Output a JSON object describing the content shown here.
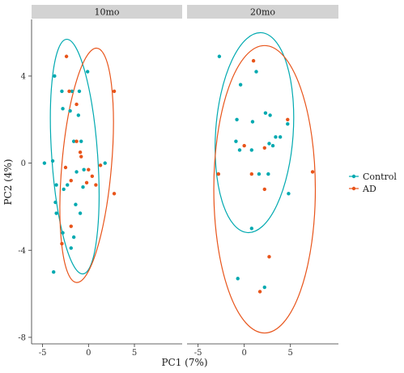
{
  "chart_data": {
    "type": "scatter",
    "xlabel": "PC1 (7%)",
    "ylabel": "PC2 (4%)",
    "xlim": [
      -6.2,
      10.2
    ],
    "ylim": [
      -8.3,
      6.6
    ],
    "xticks": [
      -5,
      0,
      5
    ],
    "yticks": [
      -8,
      -4,
      0,
      4
    ],
    "grid": false,
    "legend_position": "right",
    "colors": {
      "Control": "#00a9b0",
      "AD": "#e8541a"
    },
    "series_order": [
      "Control",
      "AD"
    ],
    "panels": [
      {
        "label": "10mo",
        "ellipses": [
          {
            "series": "Control",
            "cx": -1.5,
            "cy": 0.3,
            "rx": 2.5,
            "ry": 5.4,
            "angle": -4
          },
          {
            "series": "AD",
            "cx": -0.2,
            "cy": -0.1,
            "rx": 2.7,
            "ry": 5.4,
            "angle": 5
          }
        ],
        "points": [
          {
            "series": "Control",
            "x": -3.7,
            "y": 4.0
          },
          {
            "series": "Control",
            "x": -0.1,
            "y": 4.2
          },
          {
            "series": "Control",
            "x": -2.9,
            "y": 3.3
          },
          {
            "series": "Control",
            "x": -1.8,
            "y": 3.3
          },
          {
            "series": "Control",
            "x": -1.0,
            "y": 3.3
          },
          {
            "series": "Control",
            "x": -2.8,
            "y": 2.5
          },
          {
            "series": "Control",
            "x": -2.0,
            "y": 2.4
          },
          {
            "series": "Control",
            "x": -1.1,
            "y": 2.2
          },
          {
            "series": "Control",
            "x": -1.6,
            "y": 1.0
          },
          {
            "series": "Control",
            "x": -0.8,
            "y": 1.0
          },
          {
            "series": "Control",
            "x": -4.8,
            "y": 0.0
          },
          {
            "series": "Control",
            "x": -3.9,
            "y": 0.1
          },
          {
            "series": "Control",
            "x": 1.8,
            "y": 0.0
          },
          {
            "series": "Control",
            "x": -0.5,
            "y": -0.3
          },
          {
            "series": "Control",
            "x": -1.3,
            "y": -0.4
          },
          {
            "series": "Control",
            "x": -3.5,
            "y": -1.0
          },
          {
            "series": "Control",
            "x": -2.3,
            "y": -1.0
          },
          {
            "series": "Control",
            "x": -2.7,
            "y": -1.2
          },
          {
            "series": "Control",
            "x": -0.6,
            "y": -1.1
          },
          {
            "series": "Control",
            "x": -3.6,
            "y": -1.8
          },
          {
            "series": "Control",
            "x": -1.4,
            "y": -1.9
          },
          {
            "series": "Control",
            "x": -3.5,
            "y": -2.3
          },
          {
            "series": "Control",
            "x": -0.9,
            "y": -2.3
          },
          {
            "series": "Control",
            "x": -2.8,
            "y": -3.2
          },
          {
            "series": "Control",
            "x": -1.6,
            "y": -3.4
          },
          {
            "series": "Control",
            "x": -1.9,
            "y": -3.9
          },
          {
            "series": "Control",
            "x": -3.8,
            "y": -5.0
          },
          {
            "series": "AD",
            "x": -2.4,
            "y": 4.9
          },
          {
            "series": "AD",
            "x": -2.1,
            "y": 3.3
          },
          {
            "series": "AD",
            "x": 2.8,
            "y": 3.3
          },
          {
            "series": "AD",
            "x": -1.3,
            "y": 2.7
          },
          {
            "series": "AD",
            "x": -1.3,
            "y": 1.0
          },
          {
            "series": "AD",
            "x": -0.9,
            "y": 0.5
          },
          {
            "series": "AD",
            "x": -0.8,
            "y": 0.3
          },
          {
            "series": "AD",
            "x": -2.5,
            "y": -0.2
          },
          {
            "series": "AD",
            "x": 0.0,
            "y": -0.3
          },
          {
            "series": "AD",
            "x": 1.3,
            "y": -0.1
          },
          {
            "series": "AD",
            "x": 0.4,
            "y": -0.6
          },
          {
            "series": "AD",
            "x": -1.9,
            "y": -0.8
          },
          {
            "series": "AD",
            "x": -0.2,
            "y": -0.9
          },
          {
            "series": "AD",
            "x": 0.8,
            "y": -1.0
          },
          {
            "series": "AD",
            "x": 2.8,
            "y": -1.4
          },
          {
            "series": "AD",
            "x": -1.9,
            "y": -2.9
          },
          {
            "series": "AD",
            "x": -2.9,
            "y": -3.7
          }
        ]
      },
      {
        "label": "20mo",
        "ellipses": [
          {
            "series": "Control",
            "cx": 1.1,
            "cy": 1.4,
            "rx": 4.2,
            "ry": 4.6,
            "angle": 4
          },
          {
            "series": "AD",
            "cx": 2.2,
            "cy": -1.2,
            "rx": 5.5,
            "ry": 6.6,
            "angle": 0
          }
        ],
        "points": [
          {
            "series": "Control",
            "x": -2.7,
            "y": 4.9
          },
          {
            "series": "Control",
            "x": 1.3,
            "y": 4.2
          },
          {
            "series": "Control",
            "x": -0.4,
            "y": 3.6
          },
          {
            "series": "Control",
            "x": 2.3,
            "y": 2.3
          },
          {
            "series": "Control",
            "x": 2.8,
            "y": 2.2
          },
          {
            "series": "Control",
            "x": -0.8,
            "y": 2.0
          },
          {
            "series": "Control",
            "x": 0.9,
            "y": 1.9
          },
          {
            "series": "Control",
            "x": 4.7,
            "y": 1.8
          },
          {
            "series": "Control",
            "x": 3.4,
            "y": 1.2
          },
          {
            "series": "Control",
            "x": 3.9,
            "y": 1.2
          },
          {
            "series": "Control",
            "x": -0.9,
            "y": 1.0
          },
          {
            "series": "Control",
            "x": 2.7,
            "y": 0.9
          },
          {
            "series": "Control",
            "x": 3.1,
            "y": 0.8
          },
          {
            "series": "Control",
            "x": -0.5,
            "y": 0.6
          },
          {
            "series": "Control",
            "x": 0.8,
            "y": 0.6
          },
          {
            "series": "Control",
            "x": -2.8,
            "y": -0.5
          },
          {
            "series": "Control",
            "x": 1.6,
            "y": -0.5
          },
          {
            "series": "Control",
            "x": 2.6,
            "y": -0.5
          },
          {
            "series": "Control",
            "x": 4.8,
            "y": -1.4
          },
          {
            "series": "Control",
            "x": 0.8,
            "y": -3.0
          },
          {
            "series": "Control",
            "x": -0.7,
            "y": -5.3
          },
          {
            "series": "Control",
            "x": 2.2,
            "y": -5.7
          },
          {
            "series": "AD",
            "x": 1.0,
            "y": 4.7
          },
          {
            "series": "AD",
            "x": 4.7,
            "y": 2.0
          },
          {
            "series": "AD",
            "x": 2.2,
            "y": 0.7
          },
          {
            "series": "AD",
            "x": 0.0,
            "y": 0.8
          },
          {
            "series": "AD",
            "x": 7.4,
            "y": -0.4
          },
          {
            "series": "AD",
            "x": -2.8,
            "y": -0.5
          },
          {
            "series": "AD",
            "x": 0.8,
            "y": -0.5
          },
          {
            "series": "AD",
            "x": 2.2,
            "y": -1.2
          },
          {
            "series": "AD",
            "x": 2.7,
            "y": -4.3
          },
          {
            "series": "AD",
            "x": 1.7,
            "y": -5.9
          }
        ]
      }
    ],
    "legend": [
      {
        "series": "Control",
        "label": "Control"
      },
      {
        "series": "AD",
        "label": "AD"
      }
    ]
  }
}
